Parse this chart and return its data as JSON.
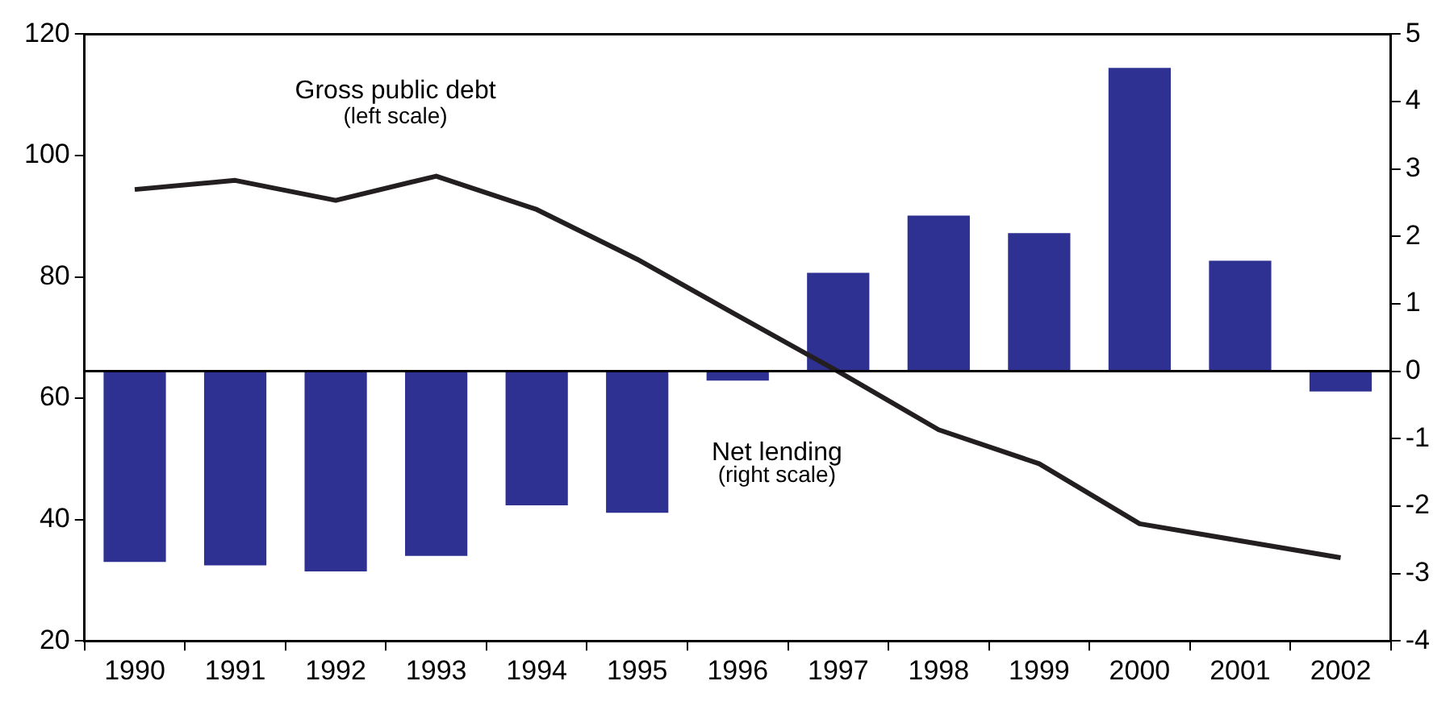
{
  "chart_data": {
    "type": "bar",
    "categories": [
      "1990",
      "1991",
      "1992",
      "1993",
      "1994",
      "1995",
      "1996",
      "1997",
      "1998",
      "1999",
      "2000",
      "2001",
      "2002"
    ],
    "series": [
      {
        "axis": "y2",
        "color": "#2e3192",
        "values": [
          -2.83,
          -2.88,
          -2.97,
          -2.74,
          -1.99,
          -2.1,
          -0.14,
          1.46,
          2.31,
          2.05,
          4.5,
          1.64,
          -0.3
        ]
      },
      {
        "type": "line",
        "axis": "y",
        "color": "#231f20",
        "values": [
          94.4,
          95.9,
          92.6,
          96.6,
          91.1,
          82.9,
          73.6,
          64.4,
          54.8,
          49.2,
          39.3,
          36.5,
          33.7
        ]
      }
    ],
    "ylim": [
      20,
      120
    ],
    "yticks": [
      20,
      40,
      60,
      80,
      100,
      120
    ],
    "y2lim": [
      -4,
      5
    ],
    "y2ticks": [
      -4,
      -3,
      -2,
      -1,
      0,
      1,
      2,
      3,
      4,
      5
    ],
    "ref_lines": [
      {
        "axis": "y2",
        "value": 0,
        "color": "#000000"
      }
    ],
    "annotations": [
      "Gross public debt",
      "(left scale)",
      "Net lending",
      "(right scale)"
    ],
    "grid": false,
    "legend": false,
    "marker": "none",
    "line_style": "solid"
  }
}
